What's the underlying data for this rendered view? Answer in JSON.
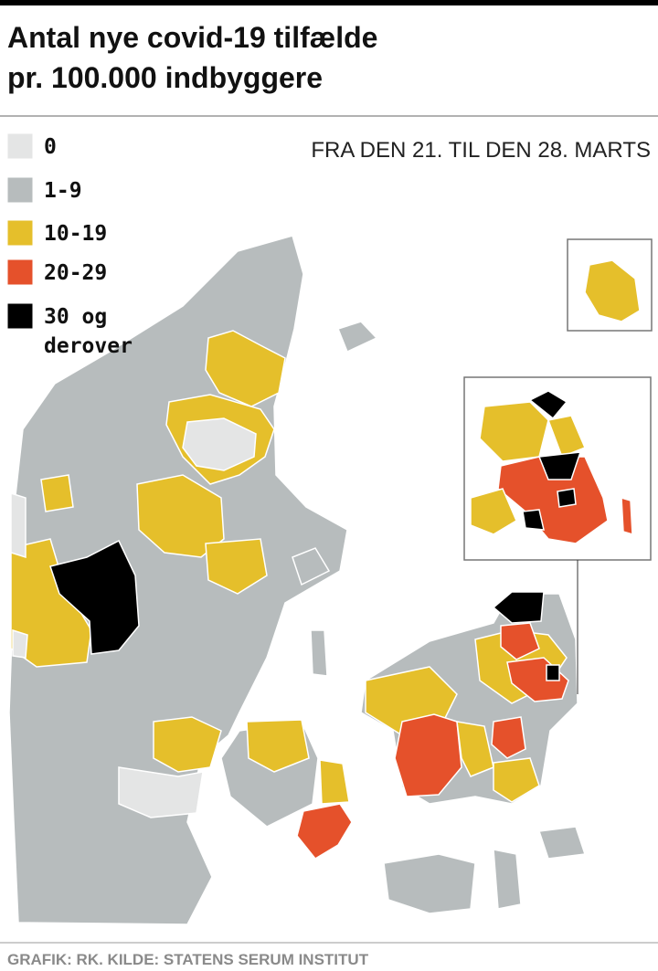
{
  "header": {
    "title_lines": [
      "Antal nye covid-19 tilfælde",
      "pr. 100.000 indbyggere"
    ],
    "period": "FRA DEN 21. TIL DEN 28. MARTS"
  },
  "legend": {
    "items": [
      {
        "lines": [
          "0"
        ],
        "color": "#e4e5e5"
      },
      {
        "lines": [
          "1-9"
        ],
        "color": "#b7bcbd"
      },
      {
        "lines": [
          "10-19"
        ],
        "color": "#e5bf2b"
      },
      {
        "lines": [
          "20-29"
        ],
        "color": "#e5512b"
      },
      {
        "lines": [
          "30 og",
          "derover"
        ],
        "color": "#000000"
      }
    ]
  },
  "footer": {
    "source": "GRAFIK: RK. KILDE: STATENS SERUM INSTITUT"
  }
}
